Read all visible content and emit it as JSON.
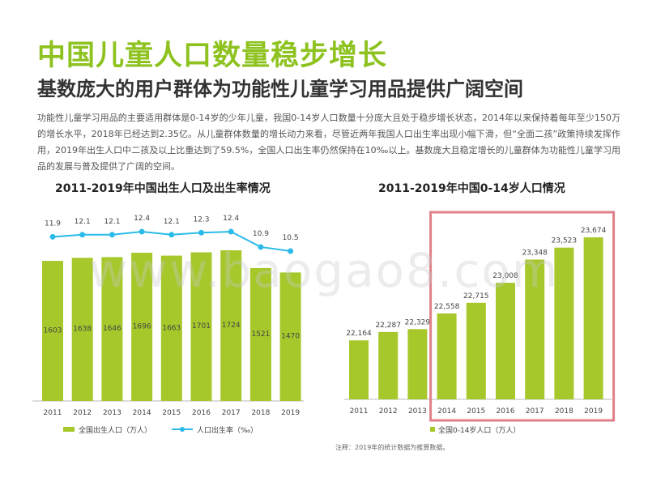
{
  "page": {
    "title": "中国儿童人口数量稳步增长",
    "subtitle": "基数庞大的用户群体为功能性儿童学习用品提供广阔空间",
    "paragraph": "功能性儿童学习用品的主要适用群体是0-14岁的少年儿童，我国0-14岁人口数量十分庞大且处于稳步增长状态，2014年以来保持着每年至少150万的增长水平，2018年已经达到2.35亿。从儿童群体数量的增长动力来看，尽管近两年我国人口出生率出现小幅下滑，但“全面二孩”政策持续发挥作用，2019年出生人口中二孩及以上比重达到了59.5%，全国人口出生率仍然保持在10‰以上。基数庞大且稳定增长的儿童群体为功能性儿童学习用品的发展与普及提供了广阔的空间。",
    "footnote": "注释：2019年的统计数据为推算数据。",
    "watermark": "www.baogao8.com"
  },
  "colors": {
    "green": "#a6c82b",
    "blue": "#2bbbe8",
    "highlight": "#e08088",
    "title_green": "#8dc21f"
  },
  "chart_data": [
    {
      "type": "bar",
      "title": "2011-2019年中国出生人口及出生率情况",
      "categories": [
        "2011",
        "2012",
        "2013",
        "2014",
        "2015",
        "2016",
        "2017",
        "2018",
        "2019"
      ],
      "series": [
        {
          "name": "全国出生人口（万人）",
          "type": "bar",
          "values": [
            1603,
            1638,
            1646,
            1696,
            1663,
            1701,
            1724,
            1521,
            1470
          ],
          "labels": [
            "1603",
            "1638",
            "1646",
            "1696",
            "1663",
            "1701",
            "1724",
            "1521",
            "1470"
          ]
        },
        {
          "name": "人口出生率（‰）",
          "type": "line",
          "values": [
            11.9,
            12.1,
            12.1,
            12.4,
            12.1,
            12.3,
            12.4,
            10.9,
            10.5
          ],
          "labels": [
            "11.9",
            "12.1",
            "12.1",
            "12.4",
            "12.1",
            "12.3",
            "12.4",
            "10.9",
            "10.5"
          ]
        }
      ],
      "legend_position": "bottom"
    },
    {
      "type": "bar",
      "title": "2011-2019年中国0-14岁人口情况",
      "categories": [
        "2011",
        "2012",
        "2013",
        "2014",
        "2015",
        "2016",
        "2017",
        "2018",
        "2019"
      ],
      "series": [
        {
          "name": "全国0-14岁人口（万人）",
          "values": [
            22164,
            22287,
            22329,
            22558,
            22715,
            23008,
            23348,
            23523,
            23674
          ],
          "labels": [
            "22,164",
            "22,287",
            "22,329",
            "22,558",
            "22,715",
            "23,008",
            "23,348",
            "23,523",
            "23,674"
          ]
        }
      ],
      "highlight_range": [
        "2014",
        "2019"
      ],
      "legend_position": "bottom"
    }
  ]
}
